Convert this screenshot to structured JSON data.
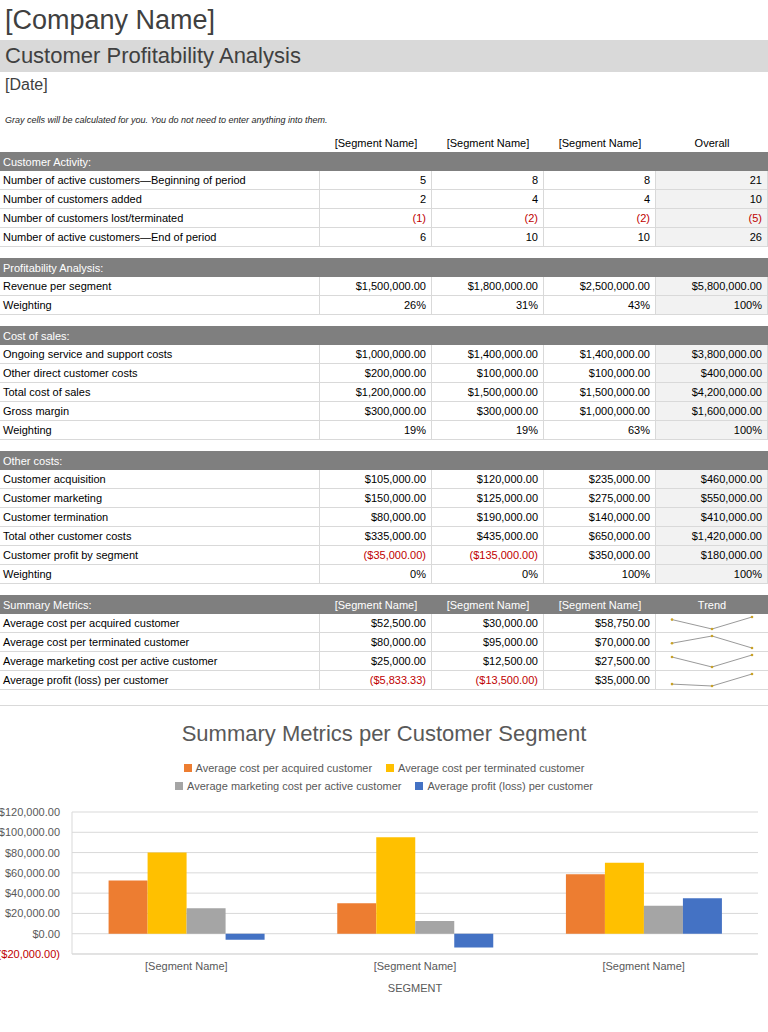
{
  "header": {
    "company": "[Company Name]",
    "title": "Customer Profitability Analysis",
    "date": "[Date]",
    "note": "Gray cells will be calculated for you. You do not need to enter anything into them."
  },
  "table": {
    "columns": [
      "[Segment Name]",
      "[Segment Name]",
      "[Segment Name]",
      "Overall"
    ],
    "sections": [
      {
        "title": "Customer Activity:",
        "rows": [
          [
            "Number of active customers—Beginning of period",
            "5",
            "8",
            "8",
            "21"
          ],
          [
            "Number of customers added",
            "2",
            "4",
            "4",
            "10"
          ],
          [
            "Number of customers lost/terminated",
            "(1)",
            "(2)",
            "(2)",
            "(5)"
          ],
          [
            "Number of active customers—End of period",
            "6",
            "10",
            "10",
            "26"
          ]
        ]
      },
      {
        "title": "Profitability Analysis:",
        "rows": [
          [
            "Revenue per segment",
            "$1,500,000.00",
            "$1,800,000.00",
            "$2,500,000.00",
            "$5,800,000.00"
          ],
          [
            "Weighting",
            "26%",
            "31%",
            "43%",
            "100%"
          ]
        ]
      },
      {
        "title": "Cost of sales:",
        "rows": [
          [
            "Ongoing service and support costs",
            "$1,000,000.00",
            "$1,400,000.00",
            "$1,400,000.00",
            "$3,800,000.00"
          ],
          [
            "Other direct customer costs",
            "$200,000.00",
            "$100,000.00",
            "$100,000.00",
            "$400,000.00"
          ],
          [
            "Total cost of sales",
            "$1,200,000.00",
            "$1,500,000.00",
            "$1,500,000.00",
            "$4,200,000.00"
          ],
          [
            "Gross margin",
            "$300,000.00",
            "$300,000.00",
            "$1,000,000.00",
            "$1,600,000.00"
          ],
          [
            "Weighting",
            "19%",
            "19%",
            "63%",
            "100%"
          ]
        ]
      },
      {
        "title": "Other costs:",
        "rows": [
          [
            "Customer acquisition",
            "$105,000.00",
            "$120,000.00",
            "$235,000.00",
            "$460,000.00"
          ],
          [
            "Customer marketing",
            "$150,000.00",
            "$125,000.00",
            "$275,000.00",
            "$550,000.00"
          ],
          [
            "Customer termination",
            "$80,000.00",
            "$190,000.00",
            "$140,000.00",
            "$410,000.00"
          ],
          [
            "Total other customer costs",
            "$335,000.00",
            "$435,000.00",
            "$650,000.00",
            "$1,420,000.00"
          ],
          [
            "Customer profit by segment",
            "($35,000.00)",
            "($135,000.00)",
            "$350,000.00",
            "$180,000.00"
          ],
          [
            "Weighting",
            "0%",
            "0%",
            "100%",
            "100%"
          ]
        ]
      }
    ]
  },
  "summary": {
    "title": "Summary Metrics:",
    "columns": [
      "[Segment Name]",
      "[Segment Name]",
      "[Segment Name]",
      "Trend"
    ],
    "rows": [
      [
        "Average cost per acquired customer",
        "$52,500.00",
        "$30,000.00",
        "$58,750.00"
      ],
      [
        "Average cost per terminated customer",
        "$80,000.00",
        "$95,000.00",
        "$70,000.00"
      ],
      [
        "Average marketing cost per active customer",
        "$25,000.00",
        "$12,500.00",
        "$27,500.00"
      ],
      [
        "Average profit (loss) per customer",
        "($5,833.33)",
        "($13,500.00)",
        "$35,000.00"
      ]
    ]
  },
  "chart_data": {
    "type": "bar",
    "title": "Summary Metrics per Customer Segment",
    "x_label": "SEGMENT",
    "categories": [
      "[Segment Name]",
      "[Segment Name]",
      "[Segment Name]"
    ],
    "series": [
      {
        "name": "Average cost per acquired customer",
        "color": "#ed7d31",
        "values": [
          52500,
          30000,
          58750
        ]
      },
      {
        "name": "Average cost per terminated customer",
        "color": "#ffc000",
        "values": [
          80000,
          95000,
          70000
        ]
      },
      {
        "name": "Average marketing cost per active customer",
        "color": "#a5a5a5",
        "values": [
          25000,
          12500,
          27500
        ]
      },
      {
        "name": "Average profit (loss) per customer",
        "color": "#4472c4",
        "values": [
          -5833.33,
          -13500,
          35000
        ]
      }
    ],
    "ylim": [
      -20000,
      120000
    ],
    "yticks": [
      {
        "value": -20000,
        "label": "($20,000.00)"
      },
      {
        "value": 0,
        "label": "$0.00"
      },
      {
        "value": 20000,
        "label": "$20,000.00"
      },
      {
        "value": 40000,
        "label": "$40,000.00"
      },
      {
        "value": 60000,
        "label": "$60,000.00"
      },
      {
        "value": 80000,
        "label": "$80,000.00"
      },
      {
        "value": 100000,
        "label": "$100,000.00"
      },
      {
        "value": 120000,
        "label": "$120,000.00"
      }
    ],
    "grid": true,
    "legend": "top"
  }
}
